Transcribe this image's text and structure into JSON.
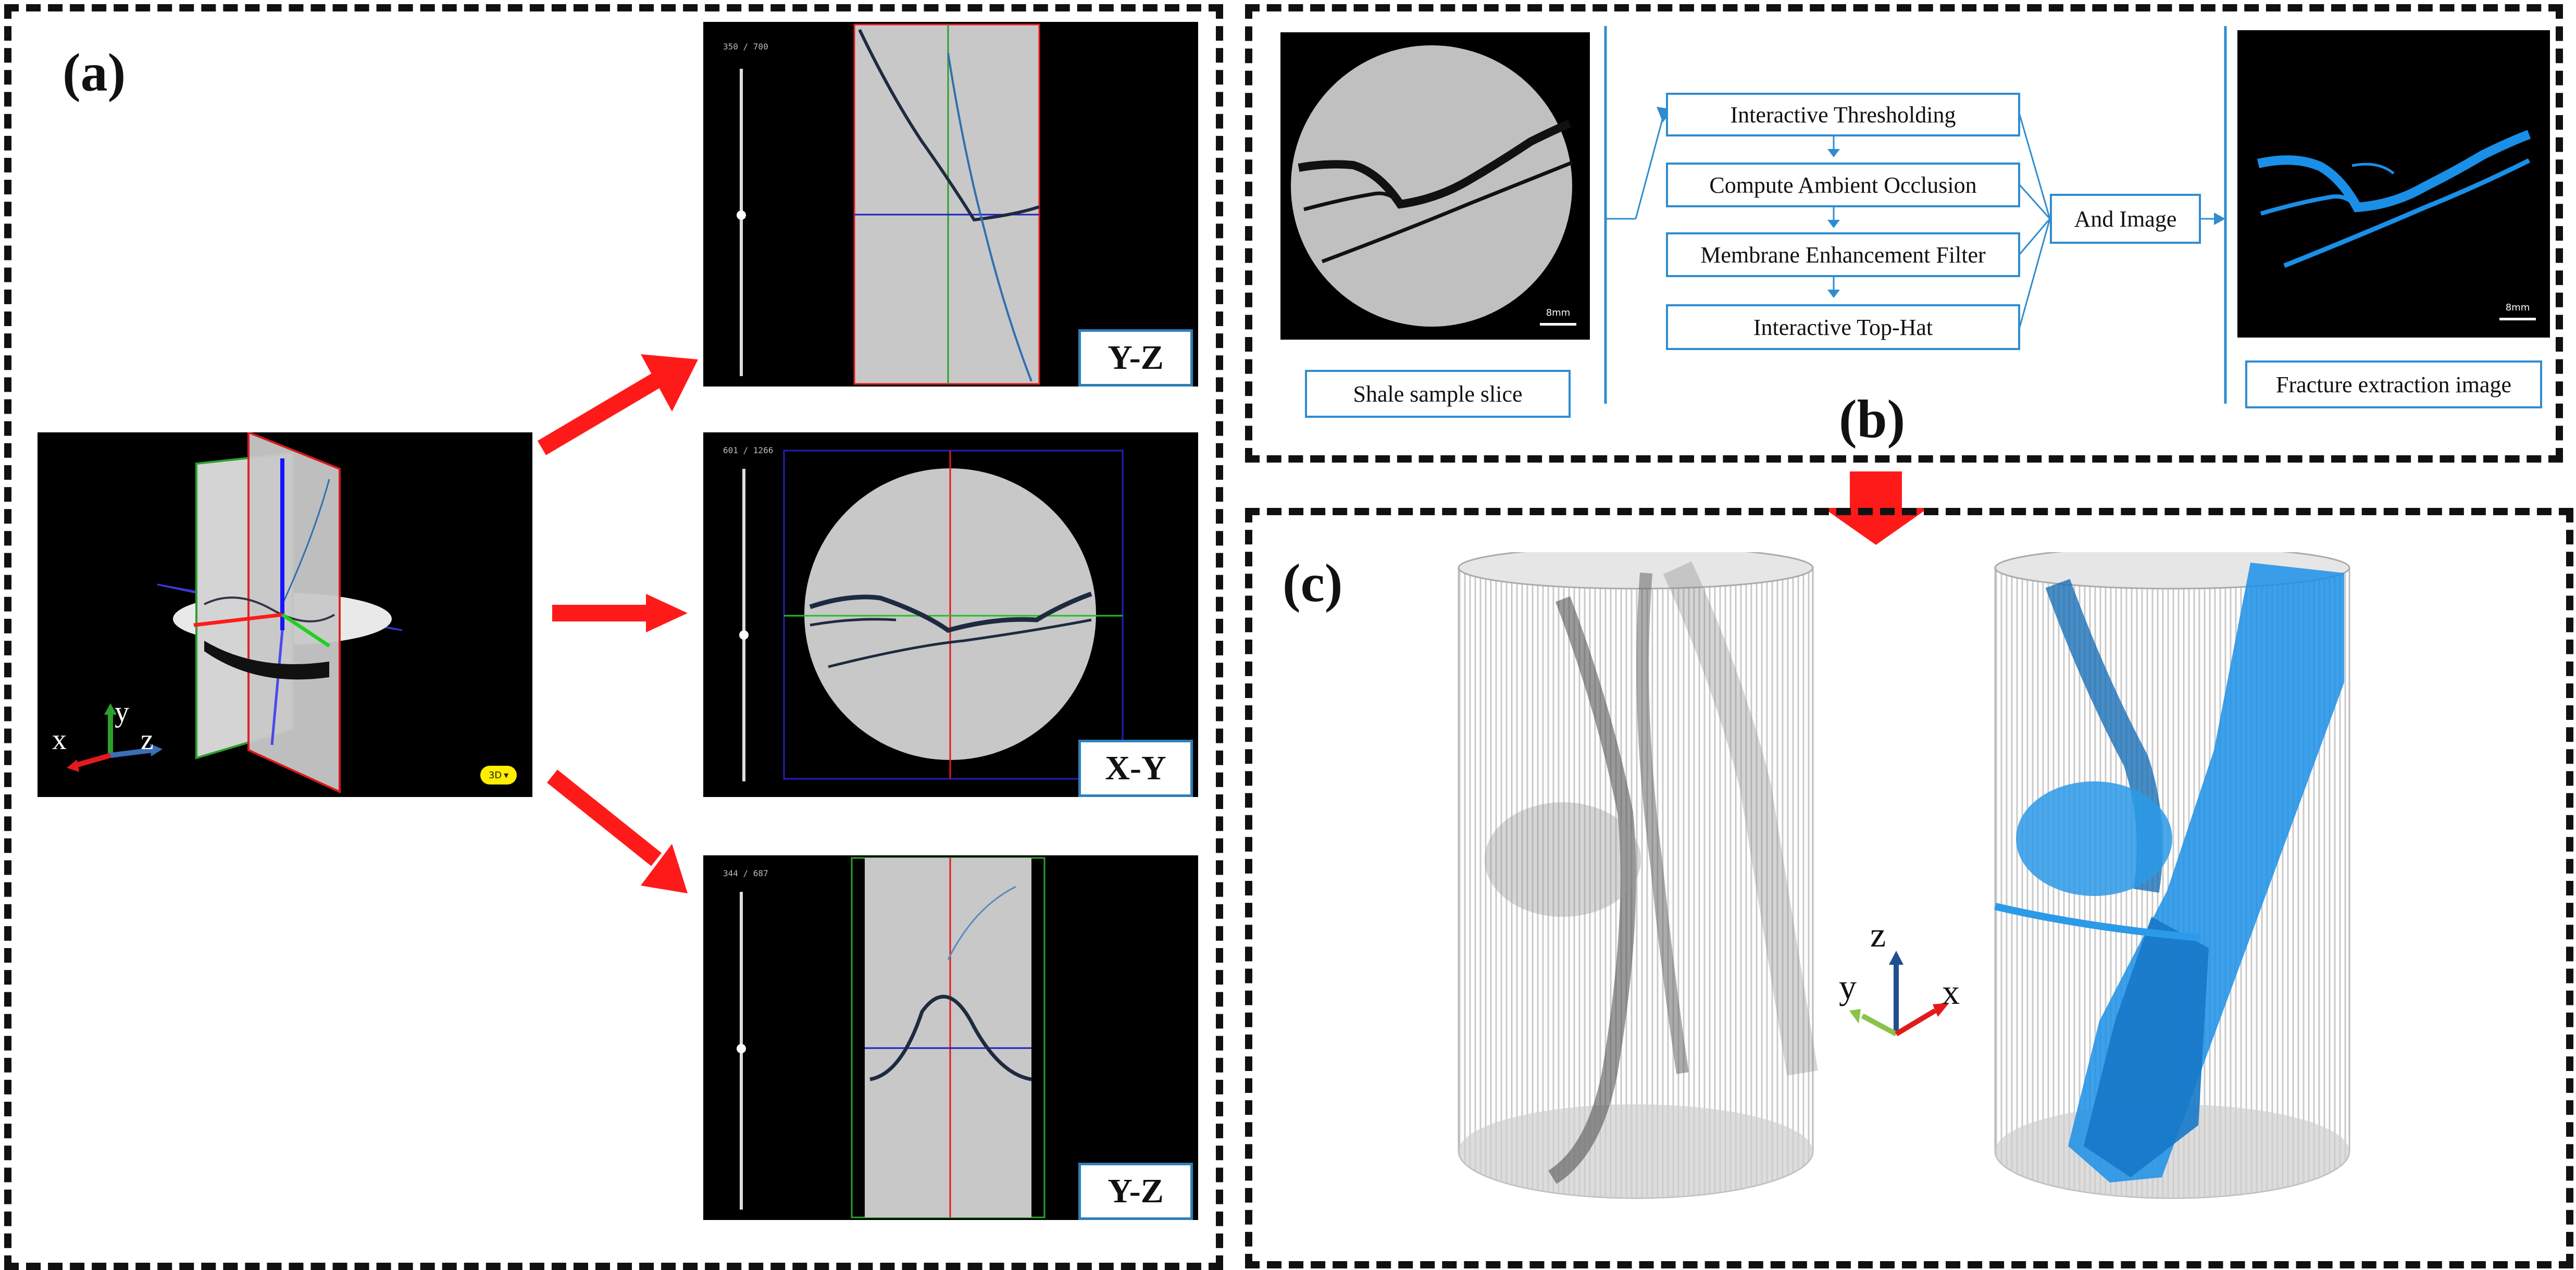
{
  "panel_a": {
    "letter": "(a)",
    "three_d_badge": "3D",
    "axes": {
      "x": "x",
      "y": "y",
      "z": "z"
    },
    "views": [
      {
        "counter": "350 / 700",
        "label": "Y-Z"
      },
      {
        "counter": "601 / 1266",
        "label": "X-Y"
      },
      {
        "counter": "344 / 687",
        "label": "Y-Z"
      }
    ]
  },
  "panel_b": {
    "letter": "(b)",
    "input_caption": "Shale sample slice",
    "steps": [
      "Interactive Thresholding",
      "Compute Ambient Occlusion",
      "Membrane Enhancement Filter",
      "Interactive Top-Hat"
    ],
    "combine": "And Image",
    "output_caption": "Fracture extraction image",
    "scale_bar": "8mm"
  },
  "panel_c": {
    "letter": "(c)",
    "axes": {
      "x": "x",
      "y": "y",
      "z": "z"
    }
  },
  "colors": {
    "arrow_red": "#ff1a1a",
    "flow_blue": "#2f8cd0",
    "fracture_blue": "#1a8fe8",
    "axis_x": "#e31a1c",
    "axis_y": "#2ca02c",
    "axis_z": "#3b6fb6"
  }
}
